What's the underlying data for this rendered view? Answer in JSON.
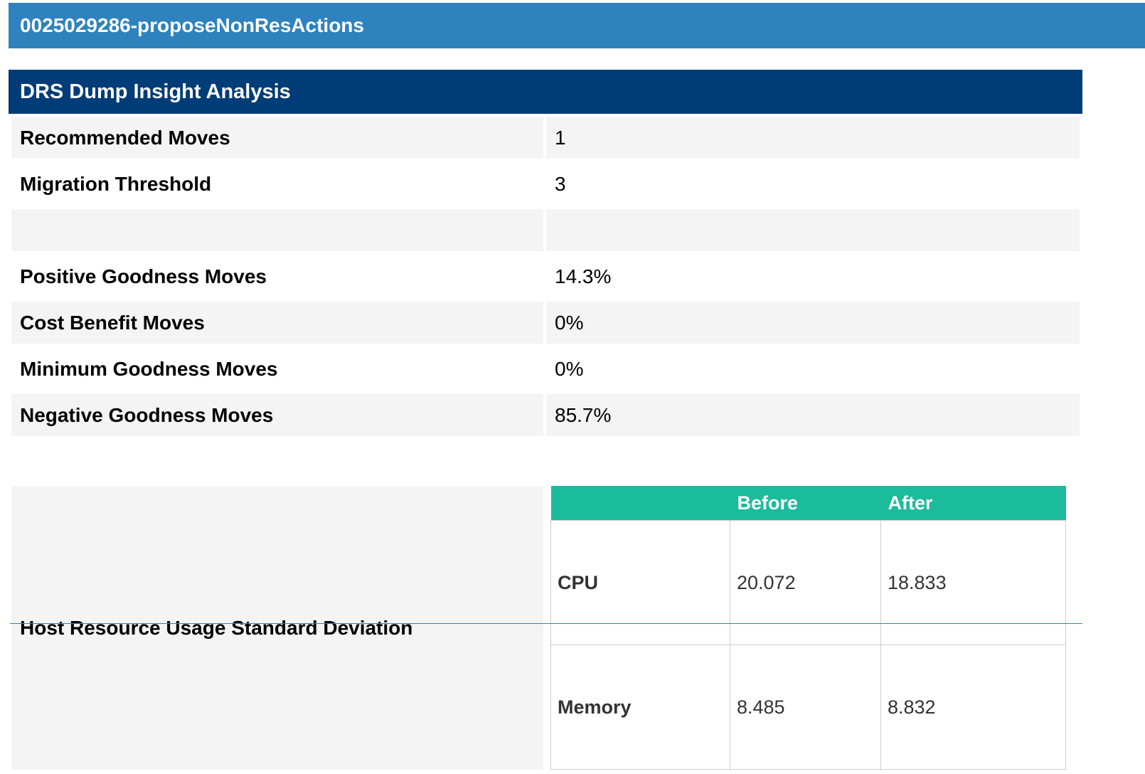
{
  "window": {
    "title": "0025029286-proposeNonResActions"
  },
  "panel": {
    "title": "DRS Dump Insight Analysis",
    "rows": [
      {
        "label": "Recommended Moves",
        "value": "1"
      },
      {
        "label": "Migration Threshold",
        "value": "3"
      },
      {
        "label": "",
        "value": ""
      },
      {
        "label": "Positive Goodness Moves",
        "value": "14.3%"
      },
      {
        "label": "Cost Benefit Moves",
        "value": "0%"
      },
      {
        "label": "Minimum Goodness Moves",
        "value": "0%"
      },
      {
        "label": "Negative Goodness Moves",
        "value": "85.7%"
      }
    ],
    "std_dev": {
      "label": "Host Resource Usage Standard Deviation",
      "columns": [
        "",
        "Before",
        "After"
      ],
      "rows": [
        {
          "metric": "CPU",
          "before": "20.072",
          "after": "18.833"
        },
        {
          "metric": "Memory",
          "before": "8.485",
          "after": "8.832"
        }
      ]
    }
  },
  "colors": {
    "title_bar": "#2e82be",
    "panel_header": "#003c78",
    "table_header": "#1abc9c",
    "row_shade": "#f4f4f4"
  }
}
